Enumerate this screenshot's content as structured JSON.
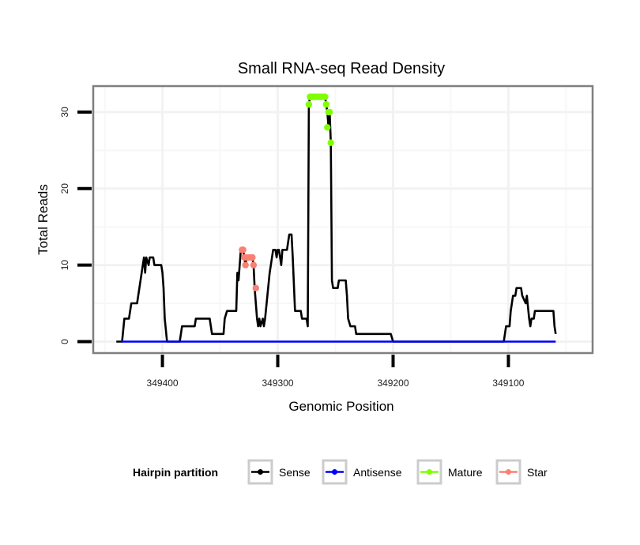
{
  "chart_data": {
    "type": "line",
    "title": "Small RNA-seq Read Density",
    "xlabel": "Genomic Position",
    "ylabel": "Total Reads",
    "xlim": [
      349460,
      349027
    ],
    "x_reversed": true,
    "ylim": [
      -1.5,
      33.4
    ],
    "x_ticks": [
      349400,
      349300,
      349200,
      349100
    ],
    "x_tick_labels": [
      "349400",
      "349300",
      "349200",
      "349100"
    ],
    "y_ticks": [
      0,
      10,
      20,
      30
    ],
    "y_tick_labels": [
      "0",
      "10",
      "20",
      "30"
    ],
    "grid": true,
    "legend": {
      "title": "Hairpin partition",
      "placement": "bottom",
      "entries": [
        {
          "label": "Sense",
          "color": "#000000"
        },
        {
          "label": "Antisense",
          "color": "#0000ff"
        },
        {
          "label": "Mature",
          "color": "#7fff00"
        },
        {
          "label": "Star",
          "color": "#fa8072"
        }
      ]
    },
    "series": [
      {
        "name": "Sense",
        "color": "#000000",
        "markers": false,
        "points": [
          [
            349440,
            0
          ],
          [
            349435,
            0
          ],
          [
            349433,
            3
          ],
          [
            349429,
            3
          ],
          [
            349427,
            5
          ],
          [
            349422,
            5
          ],
          [
            349420,
            7
          ],
          [
            349418,
            9
          ],
          [
            349416,
            11
          ],
          [
            349415,
            9
          ],
          [
            349414,
            11
          ],
          [
            349412,
            10
          ],
          [
            349411,
            11
          ],
          [
            349408,
            11
          ],
          [
            349407,
            10
          ],
          [
            349401,
            10
          ],
          [
            349400,
            9
          ],
          [
            349399,
            7
          ],
          [
            349398,
            3
          ],
          [
            349396,
            0
          ],
          [
            349385,
            0
          ],
          [
            349383,
            2
          ],
          [
            349372,
            2
          ],
          [
            349371,
            3
          ],
          [
            349359,
            3
          ],
          [
            349357,
            1
          ],
          [
            349347,
            1
          ],
          [
            349346,
            3
          ],
          [
            349344,
            4
          ],
          [
            349336,
            4
          ],
          [
            349335,
            9
          ],
          [
            349334,
            8
          ],
          [
            349332,
            12
          ],
          [
            349330,
            12
          ],
          [
            349329,
            11
          ],
          [
            349328,
            10
          ],
          [
            349327,
            11
          ],
          [
            349322,
            11
          ],
          [
            349321,
            10
          ],
          [
            349320,
            7
          ],
          [
            349318,
            3
          ],
          [
            349317,
            2
          ],
          [
            349316,
            3
          ],
          [
            349315,
            2
          ],
          [
            349313,
            3
          ],
          [
            349312,
            2
          ],
          [
            349311,
            3
          ],
          [
            349309,
            6
          ],
          [
            349307,
            9
          ],
          [
            349306,
            10
          ],
          [
            349304,
            12
          ],
          [
            349302,
            12
          ],
          [
            349301,
            11
          ],
          [
            349300,
            12
          ],
          [
            349299,
            12
          ],
          [
            349298,
            11
          ],
          [
            349297,
            10
          ],
          [
            349296,
            12
          ],
          [
            349292,
            12
          ],
          [
            349290,
            14
          ],
          [
            349288,
            14
          ],
          [
            349287,
            11
          ],
          [
            349285,
            4
          ],
          [
            349280,
            4
          ],
          [
            349279,
            3
          ],
          [
            349275,
            3
          ],
          [
            349274,
            2
          ],
          [
            349273,
            31
          ],
          [
            349272,
            32
          ],
          [
            349259,
            32
          ],
          [
            349258,
            31
          ],
          [
            349257,
            30
          ],
          [
            349256,
            28
          ],
          [
            349255,
            30
          ],
          [
            349254,
            26
          ],
          [
            349253,
            8
          ],
          [
            349252,
            7
          ],
          [
            349248,
            7
          ],
          [
            349247,
            8
          ],
          [
            349241,
            8
          ],
          [
            349240,
            6
          ],
          [
            349239,
            3
          ],
          [
            349237,
            2
          ],
          [
            349233,
            2
          ],
          [
            349232,
            1
          ],
          [
            349202,
            1
          ],
          [
            349200,
            0
          ],
          [
            349104,
            0
          ],
          [
            349102,
            2
          ],
          [
            349099,
            2
          ],
          [
            349098,
            4
          ],
          [
            349096,
            6
          ],
          [
            349094,
            6
          ],
          [
            349093,
            7
          ],
          [
            349089,
            7
          ],
          [
            349088,
            6
          ],
          [
            349085,
            5
          ],
          [
            349084,
            6
          ],
          [
            349082,
            3
          ],
          [
            349081,
            2
          ],
          [
            349080,
            3
          ],
          [
            349078,
            3
          ],
          [
            349077,
            4
          ],
          [
            349061,
            4
          ],
          [
            349060,
            2
          ],
          [
            349059,
            1
          ]
        ]
      },
      {
        "name": "Antisense",
        "color": "#0000ff",
        "markers": false,
        "points": [
          [
            349436,
            0
          ],
          [
            349059,
            0
          ]
        ]
      },
      {
        "name": "Mature",
        "color": "#7fff00",
        "markers": true,
        "points": [
          [
            349273,
            31
          ],
          [
            349272,
            32
          ],
          [
            349270,
            32
          ],
          [
            349268,
            32
          ],
          [
            349266,
            32
          ],
          [
            349264,
            32
          ],
          [
            349262,
            32
          ],
          [
            349260,
            32
          ],
          [
            349259,
            32
          ],
          [
            349258,
            31
          ],
          [
            349256,
            30
          ],
          [
            349255,
            30
          ],
          [
            349257,
            28
          ],
          [
            349254,
            26
          ]
        ]
      },
      {
        "name": "Star",
        "color": "#fa8072",
        "markers": true,
        "points": [
          [
            349331,
            12
          ],
          [
            349330,
            12
          ],
          [
            349329,
            11
          ],
          [
            349327,
            11
          ],
          [
            349325,
            11
          ],
          [
            349323,
            11
          ],
          [
            349322,
            11
          ],
          [
            349328,
            10
          ],
          [
            349321,
            10
          ],
          [
            349319,
            7
          ]
        ]
      }
    ]
  }
}
